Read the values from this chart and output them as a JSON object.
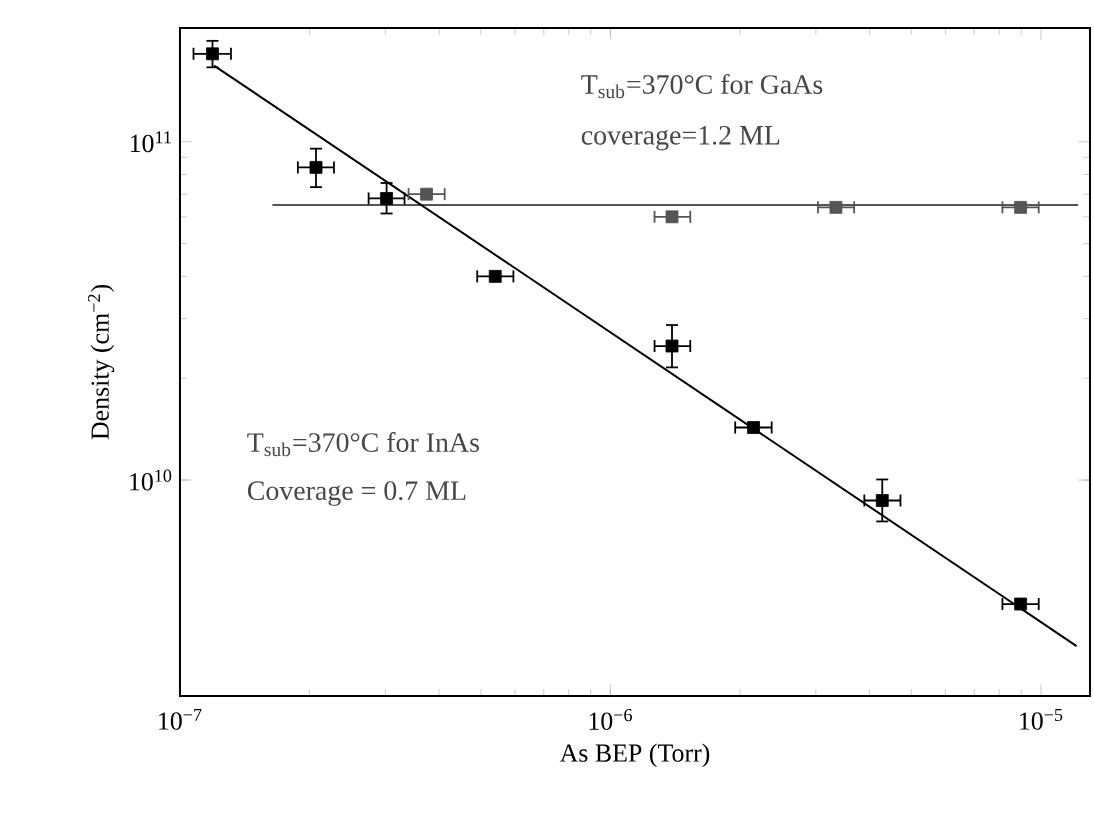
{
  "chart_data": {
    "type": "scatter",
    "xlabel": "As BEP (Torr)",
    "ylabel": "Density (cm$^{−2}$)",
    "log": "xy",
    "xlim": [
      1e-07,
      1.3e-05
    ],
    "ylim": [
      2300000000.0,
      217000000000.0
    ],
    "xticks": [
      {
        "value": 1e-07,
        "label": "10$^{−7}$"
      },
      {
        "value": 1e-06,
        "label": "10$^{−6}$"
      },
      {
        "value": 1e-05,
        "label": "10$^{−5}$"
      }
    ],
    "yticks": [
      {
        "value": 10000000000.0,
        "label": "10$^{10}$"
      },
      {
        "value": 100000000000.0,
        "label": "10$^{11}$"
      }
    ],
    "annotations": [
      "T$_{sub}$=370°C for GaAs",
      "coverage=1.2 ML",
      "T$_{sub}$=370°C for InAs",
      "Coverage = 0.7 ML"
    ],
    "series": [
      {
        "type": "line",
        "color": "#555555",
        "marker": "none",
        "x": [
          1.64e-07,
          1.22e-05
        ],
        "values": [
          65000000000.0,
          65000000000.0
        ]
      },
      {
        "type": "line",
        "color": "#000000",
        "marker": "none",
        "x": [
          1.2e-07,
          1.21e-05
        ],
        "values": [
          168000000000.0,
          3230000000.0
        ]
      },
      {
        "type": "scatter",
        "color": "#555555",
        "marker": "square",
        "x": [
          3.74e-07,
          1.39e-06,
          3.34e-06,
          8.97e-06
        ],
        "values": [
          70000000000.0,
          60000000000.0,
          64000000000.0,
          64000000000.0
        ],
        "xerrors": [
          [
            3.38e-07,
            4.14e-07
          ],
          [
            1.26e-06,
            1.54e-06
          ],
          [
            3.02e-06,
            3.7e-06
          ],
          [
            8.1e-06,
            9.93e-06
          ]
        ]
      },
      {
        "color": "#000000",
        "marker": "square",
        "x": [
          1.19e-07,
          2.07e-07,
          3.02e-07,
          5.4e-07,
          1.39e-06,
          2.15e-06,
          4.28e-06,
          8.97e-06
        ],
        "values": [
          182000000000.0,
          84000000000.0,
          68000000000.0,
          40000000000.0,
          24900000000.0,
          14300000000.0,
          8700000000.0,
          4300000000.0
        ],
        "xerrors": [
          [
            1.07e-07,
            1.32e-07
          ],
          [
            1.87e-07,
            2.29e-07
          ],
          [
            2.73e-07,
            3.34e-07
          ],
          [
            4.88e-07,
            5.98e-07
          ],
          [
            1.26e-06,
            1.54e-06
          ],
          [
            1.94e-06,
            2.38e-06
          ],
          [
            3.87e-06,
            4.74e-06
          ],
          [
            8.1e-06,
            9.93e-06
          ]
        ],
        "errors": [
          [
            165000000000.0,
            200000000000.0
          ],
          [
            73000000000.0,
            96000000000.0
          ],
          [
            61000000000.0,
            76000000000.0
          ],
          null,
          [
            21400000000.0,
            28900000000.0
          ],
          null,
          [
            7500000000.0,
            10100000000.0
          ],
          null
        ]
      }
    ]
  }
}
